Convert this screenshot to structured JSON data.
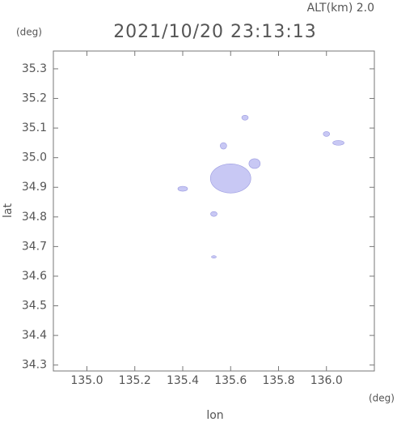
{
  "chart_data": {
    "type": "scatter",
    "altitude_label": "ALT(km)  2.0",
    "title": "2021/10/20 23:13:13",
    "y_unit": "(deg)",
    "x_unit": "(deg)",
    "x_label": "lon",
    "y_label": "lat",
    "xlim": [
      134.86,
      136.2
    ],
    "ylim": [
      34.28,
      35.36
    ],
    "xticks": [
      {
        "value": 135,
        "label": "135.0"
      },
      135.2,
      135.4,
      135.6,
      135.8,
      {
        "value": 136,
        "label": "136.0"
      }
    ],
    "yticks": [
      34.3,
      34.4,
      34.5,
      34.6,
      34.7,
      34.8,
      34.9,
      {
        "value": 35,
        "label": "35.0"
      },
      35.1,
      35.2,
      35.3
    ],
    "series": [
      {
        "name": "echo",
        "color": "#c8c8f4",
        "x": [
          135.6,
          135.7,
          135.57,
          135.66,
          135.4,
          136.05,
          136.0,
          135.53,
          135.53
        ],
        "values": [
          34.93,
          34.98,
          35.04,
          35.135,
          34.895,
          35.05,
          35.08,
          34.81,
          34.665
        ]
      }
    ]
  }
}
